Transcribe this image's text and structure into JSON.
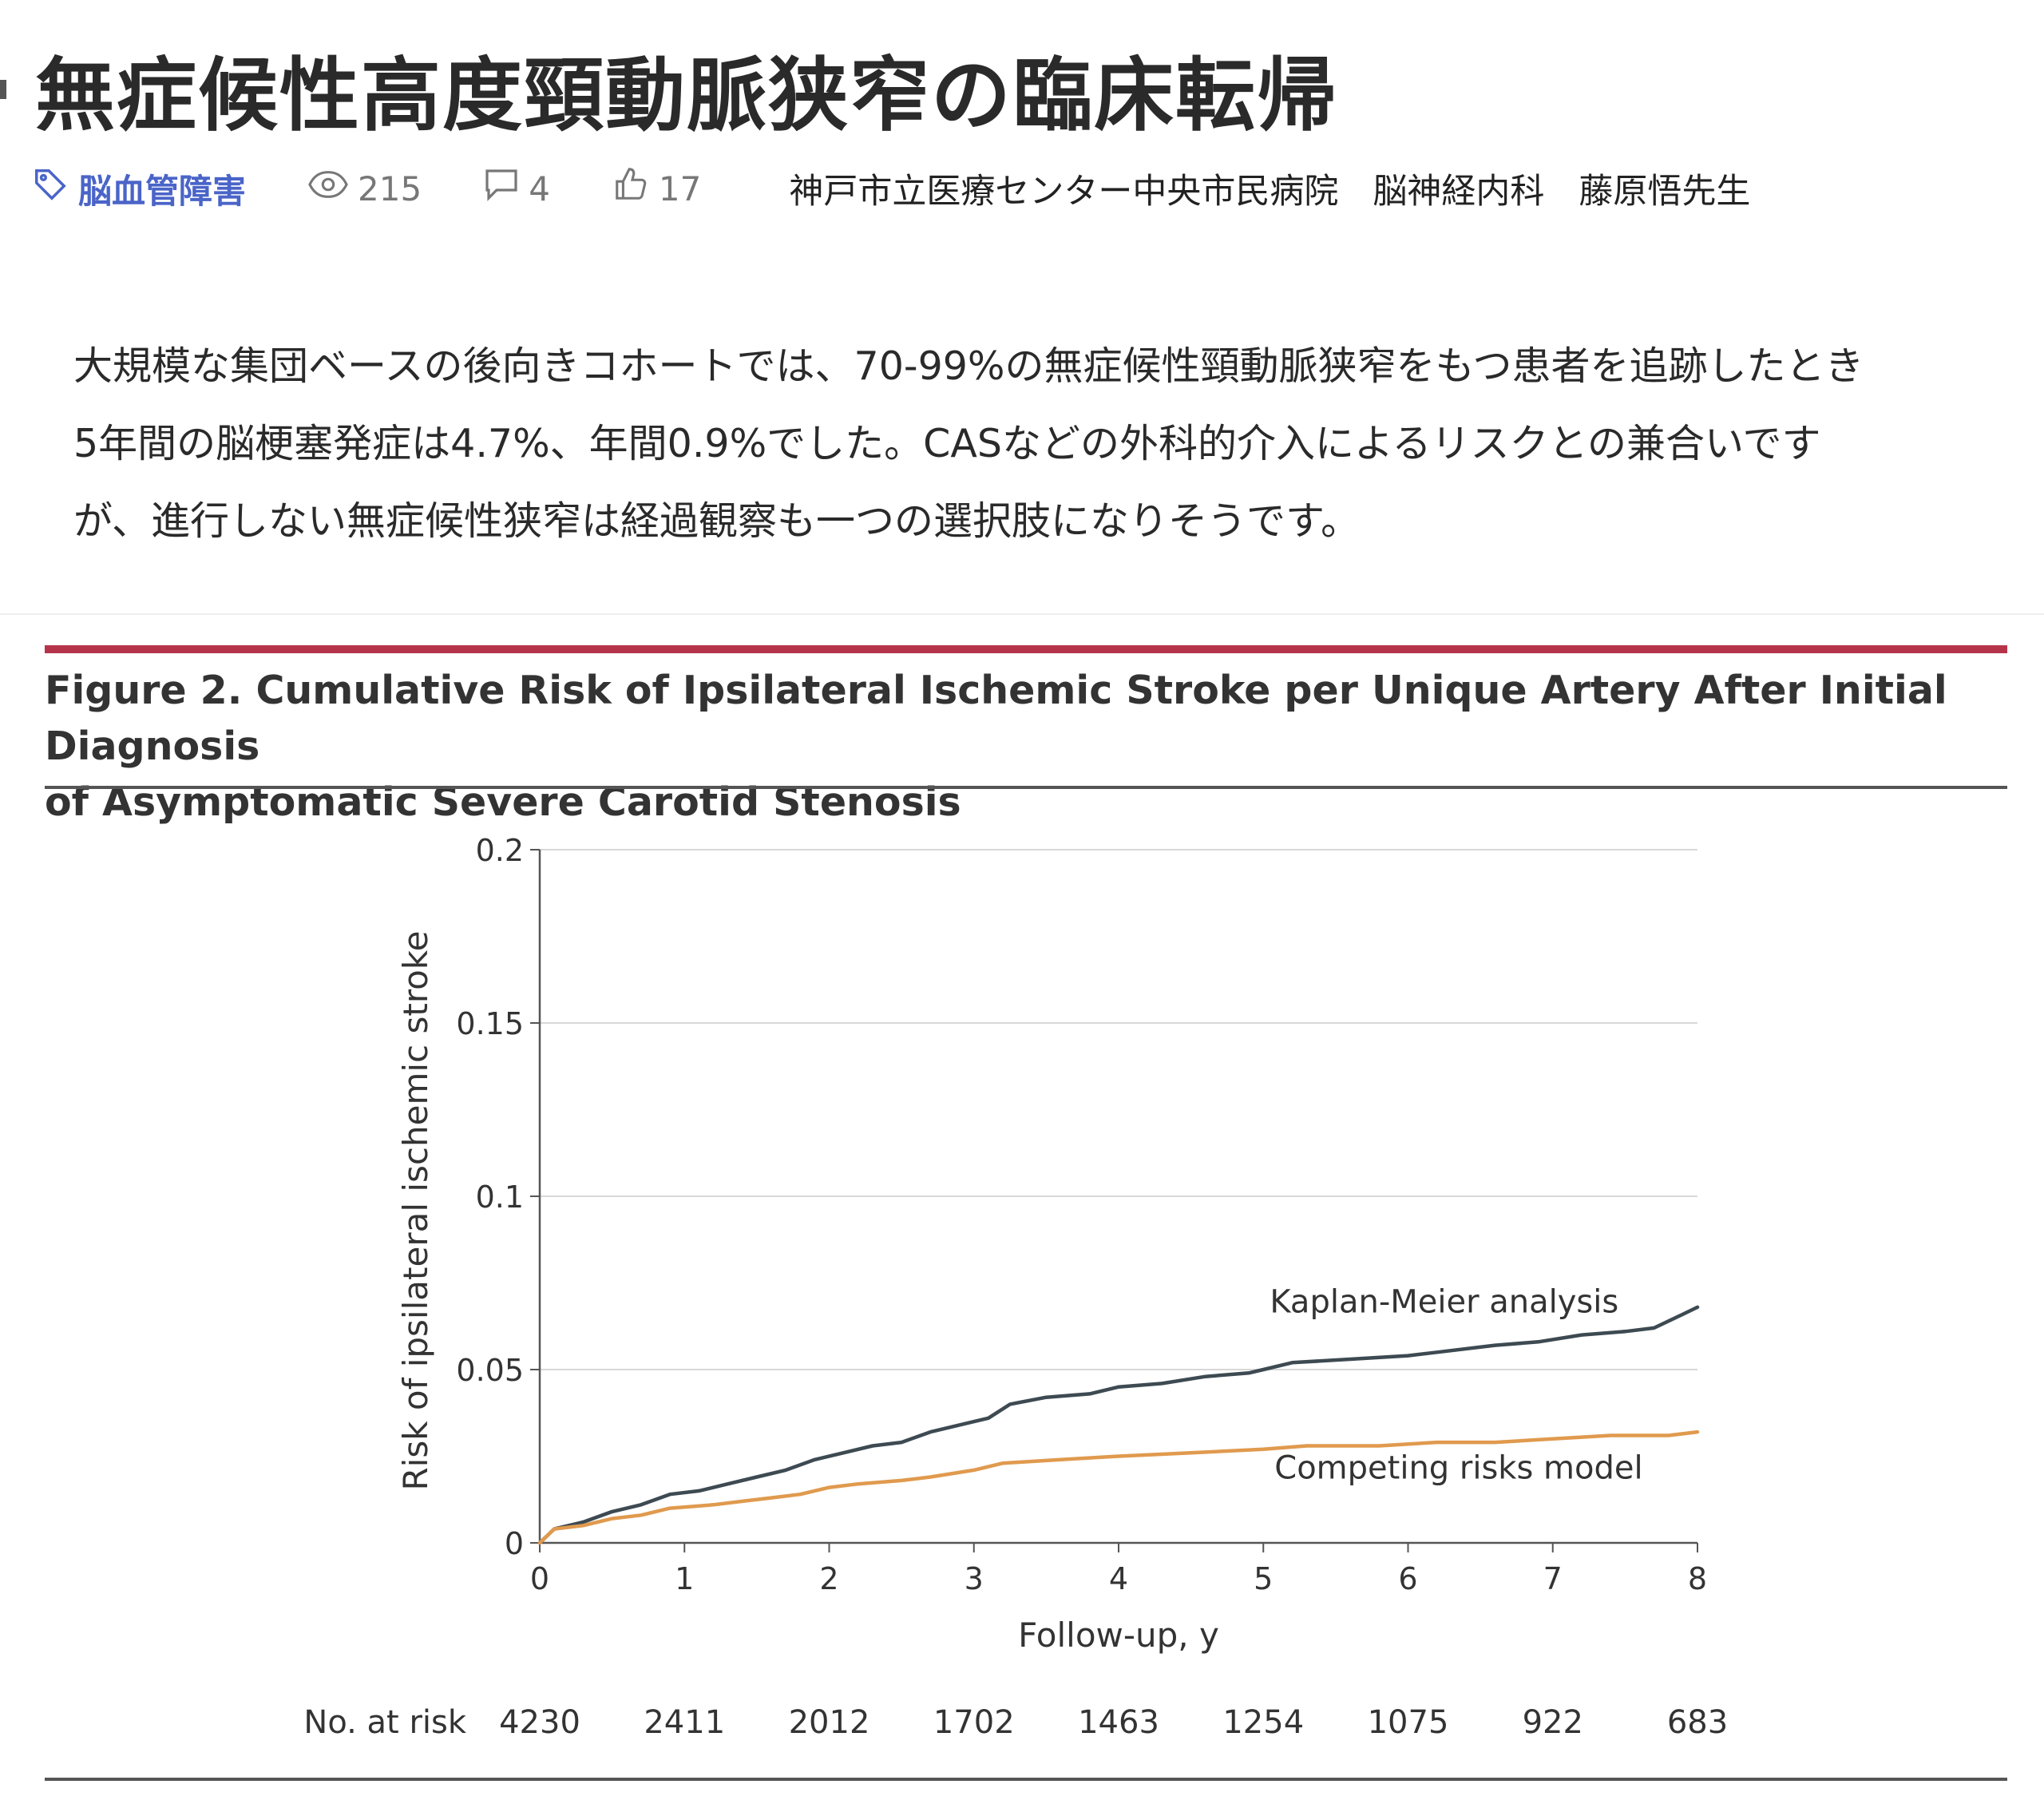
{
  "article": {
    "title": "無症候性高度頸動脈狭窄の臨床転帰",
    "tag": "脳血管障害",
    "views": "215",
    "comments": "4",
    "likes": "17",
    "author": "神戸市立医療センター中央市民病院　脳神経内科　藤原悟先生",
    "summary_lines": [
      "大規模な集団ベースの後向きコホートでは、70-99%の無症候性頸動脈狭窄をもつ患者を追跡したとき",
      "5年間の脳梗塞発症は4.7%、年間0.9%でした。CASなどの外科的介入によるリスクとの兼合いです",
      "が、進行しない無症候性狭窄は経過観察も一つの選択肢になりそうです。"
    ]
  },
  "figure": {
    "title_line1": "Figure 2. Cumulative Risk of Ipsilateral Ischemic Stroke per Unique Artery After Initial Diagnosis",
    "title_line2": "of Asymptomatic Severe Carotid Stenosis",
    "accent_color": "#b5344a"
  },
  "icons": [
    "tag-icon",
    "eye-icon",
    "comment-icon",
    "thumbs-up-icon"
  ],
  "chart_data": {
    "type": "line",
    "xlabel": "Follow-up, y",
    "ylabel": "Risk of ipsilateral ischemic stroke",
    "xlim": [
      0,
      8
    ],
    "ylim": [
      0,
      0.2
    ],
    "x_ticks": [
      0,
      1,
      2,
      3,
      4,
      5,
      6,
      7,
      8
    ],
    "y_ticks": [
      "0",
      "0.05",
      "0.1",
      "0.15",
      "0.2"
    ],
    "grid": "horizontal",
    "series": [
      {
        "name": "Kaplan-Meier analysis",
        "color": "#3d4a52",
        "points": [
          [
            0,
            0
          ],
          [
            0.1,
            0.004
          ],
          [
            0.3,
            0.006
          ],
          [
            0.5,
            0.009
          ],
          [
            0.7,
            0.011
          ],
          [
            0.9,
            0.014
          ],
          [
            1.1,
            0.015
          ],
          [
            1.3,
            0.017
          ],
          [
            1.5,
            0.019
          ],
          [
            1.7,
            0.021
          ],
          [
            1.9,
            0.024
          ],
          [
            2.1,
            0.026
          ],
          [
            2.3,
            0.028
          ],
          [
            2.5,
            0.029
          ],
          [
            2.7,
            0.032
          ],
          [
            2.9,
            0.034
          ],
          [
            3.1,
            0.036
          ],
          [
            3.25,
            0.04
          ],
          [
            3.5,
            0.042
          ],
          [
            3.8,
            0.043
          ],
          [
            4.0,
            0.045
          ],
          [
            4.3,
            0.046
          ],
          [
            4.6,
            0.048
          ],
          [
            4.9,
            0.049
          ],
          [
            5.0,
            0.05
          ],
          [
            5.2,
            0.052
          ],
          [
            5.6,
            0.053
          ],
          [
            6.0,
            0.054
          ],
          [
            6.2,
            0.055
          ],
          [
            6.6,
            0.057
          ],
          [
            6.9,
            0.058
          ],
          [
            7.2,
            0.06
          ],
          [
            7.5,
            0.061
          ],
          [
            7.7,
            0.062
          ],
          [
            7.9,
            0.066
          ],
          [
            8.0,
            0.068
          ]
        ]
      },
      {
        "name": "Competing risks model",
        "color": "#e09a4e",
        "points": [
          [
            0,
            0
          ],
          [
            0.1,
            0.004
          ],
          [
            0.3,
            0.005
          ],
          [
            0.5,
            0.007
          ],
          [
            0.7,
            0.008
          ],
          [
            0.9,
            0.01
          ],
          [
            1.2,
            0.011
          ],
          [
            1.4,
            0.012
          ],
          [
            1.6,
            0.013
          ],
          [
            1.8,
            0.014
          ],
          [
            2.0,
            0.016
          ],
          [
            2.2,
            0.017
          ],
          [
            2.5,
            0.018
          ],
          [
            2.7,
            0.019
          ],
          [
            3.0,
            0.021
          ],
          [
            3.2,
            0.023
          ],
          [
            3.6,
            0.024
          ],
          [
            4.0,
            0.025
          ],
          [
            4.5,
            0.026
          ],
          [
            5.0,
            0.027
          ],
          [
            5.3,
            0.028
          ],
          [
            5.8,
            0.028
          ],
          [
            6.2,
            0.029
          ],
          [
            6.6,
            0.029
          ],
          [
            7.0,
            0.03
          ],
          [
            7.4,
            0.031
          ],
          [
            7.8,
            0.031
          ],
          [
            8.0,
            0.032
          ]
        ]
      }
    ],
    "at_risk_label": "No. at risk",
    "at_risk": [
      "4230",
      "2411",
      "2012",
      "1702",
      "1463",
      "1254",
      "1075",
      "922",
      "683"
    ]
  }
}
